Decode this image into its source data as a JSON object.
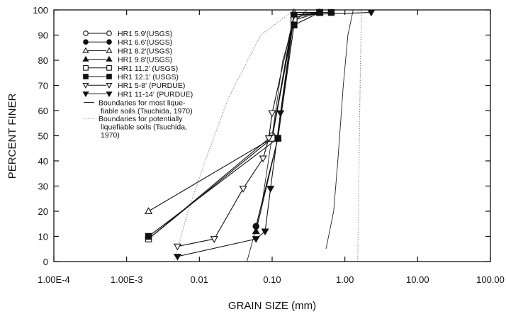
{
  "chart_data": {
    "type": "line",
    "title": "",
    "xlabel": "GRAIN SIZE (mm)",
    "ylabel": "PERCENT FINER",
    "xscale": "log",
    "xlim": [
      0.0001,
      100
    ],
    "ylim": [
      0,
      100
    ],
    "grid": false,
    "legend_position": "top-left",
    "x_tick_labels": [
      "1.00E-4",
      "1.00E-3",
      "0.01",
      "0.10",
      "1.00",
      "10.00",
      "100.00"
    ],
    "x_tick_values": [
      0.0001,
      0.001,
      0.01,
      0.1,
      1,
      10,
      100
    ],
    "y_tick_labels": [
      "0",
      "10",
      "20",
      "30",
      "40",
      "50",
      "60",
      "70",
      "80",
      "90",
      "100"
    ],
    "y_tick_values": [
      0,
      10,
      20,
      30,
      40,
      50,
      60,
      70,
      80,
      90,
      100
    ],
    "series": [
      {
        "name": "HR1 5.9'(USGS)",
        "marker": "circle-open",
        "x": [
          0.002,
          0.1,
          0.2,
          0.45
        ],
        "y": [
          9,
          50,
          97,
          99
        ]
      },
      {
        "name": "HR1 6.6'(USGS)",
        "marker": "circle-filled",
        "x": [
          0.06,
          0.12,
          0.2,
          0.45
        ],
        "y": [
          14,
          49,
          98,
          99
        ]
      },
      {
        "name": "HR1 8.2'(USGS)",
        "marker": "triangle-open",
        "x": [
          0.002,
          0.1,
          0.2,
          0.45
        ],
        "y": [
          20,
          49,
          99,
          99
        ]
      },
      {
        "name": "HR1 9.8'(USGS)",
        "marker": "triangle-filled",
        "x": [
          0.06,
          0.12,
          0.2,
          0.45
        ],
        "y": [
          12,
          49,
          98,
          99
        ]
      },
      {
        "name": "HR1 11.2' (USGS)",
        "marker": "square-open",
        "x": [
          0.002,
          0.1,
          0.2,
          0.45
        ],
        "y": [
          9,
          49,
          96,
          99
        ]
      },
      {
        "name": "HR1 12.1' (USGS)",
        "marker": "square-filled",
        "x": [
          0.002,
          0.12,
          0.2,
          0.45,
          0.65
        ],
        "y": [
          10,
          49,
          94,
          99,
          99
        ]
      },
      {
        "name": "HR1 5-8' (PURDUE)",
        "marker": "triangle-down-open",
        "x": [
          0.005,
          0.016,
          0.04,
          0.075,
          0.09,
          0.1,
          0.2
        ],
        "y": [
          6,
          9,
          29,
          41,
          49,
          59,
          98
        ]
      },
      {
        "name": "HR1 11-14' (PURDUE)",
        "marker": "triangle-down-filled",
        "x": [
          0.005,
          0.06,
          0.08,
          0.095,
          0.13,
          0.2,
          2.3
        ],
        "y": [
          2,
          9,
          12,
          29,
          59,
          98,
          99
        ]
      }
    ],
    "boundary_legend": [
      {
        "name": "Boundaries for most lique-",
        "style": "solid"
      },
      {
        "name": "fiable soils (Tsuchida, 1970)",
        "style": "solid"
      },
      {
        "name": "Boundaries for potentially",
        "style": "dotted"
      },
      {
        "name": "liquefiable soils (Tsuchida,",
        "style": "dotted"
      },
      {
        "name": "1970)",
        "style": "dotted"
      }
    ],
    "boundaries": [
      {
        "style": "solid",
        "x": [
          0.045,
          0.07,
          0.1,
          0.14,
          0.2,
          0.3
        ],
        "y": [
          0,
          20,
          50,
          80,
          95,
          100
        ]
      },
      {
        "style": "solid",
        "x": [
          0.55,
          0.7,
          0.8,
          0.95,
          1.1,
          1.3
        ],
        "y": [
          5,
          20,
          40,
          70,
          90,
          100
        ]
      },
      {
        "style": "dotted",
        "x": [
          0.0045,
          0.007,
          0.012,
          0.025,
          0.07,
          0.2
        ],
        "y": [
          0,
          20,
          40,
          65,
          90,
          100
        ]
      },
      {
        "style": "dotted",
        "x": [
          1.5,
          1.55,
          1.6,
          1.65,
          1.7
        ],
        "y": [
          0,
          30,
          60,
          85,
          100
        ]
      }
    ]
  }
}
